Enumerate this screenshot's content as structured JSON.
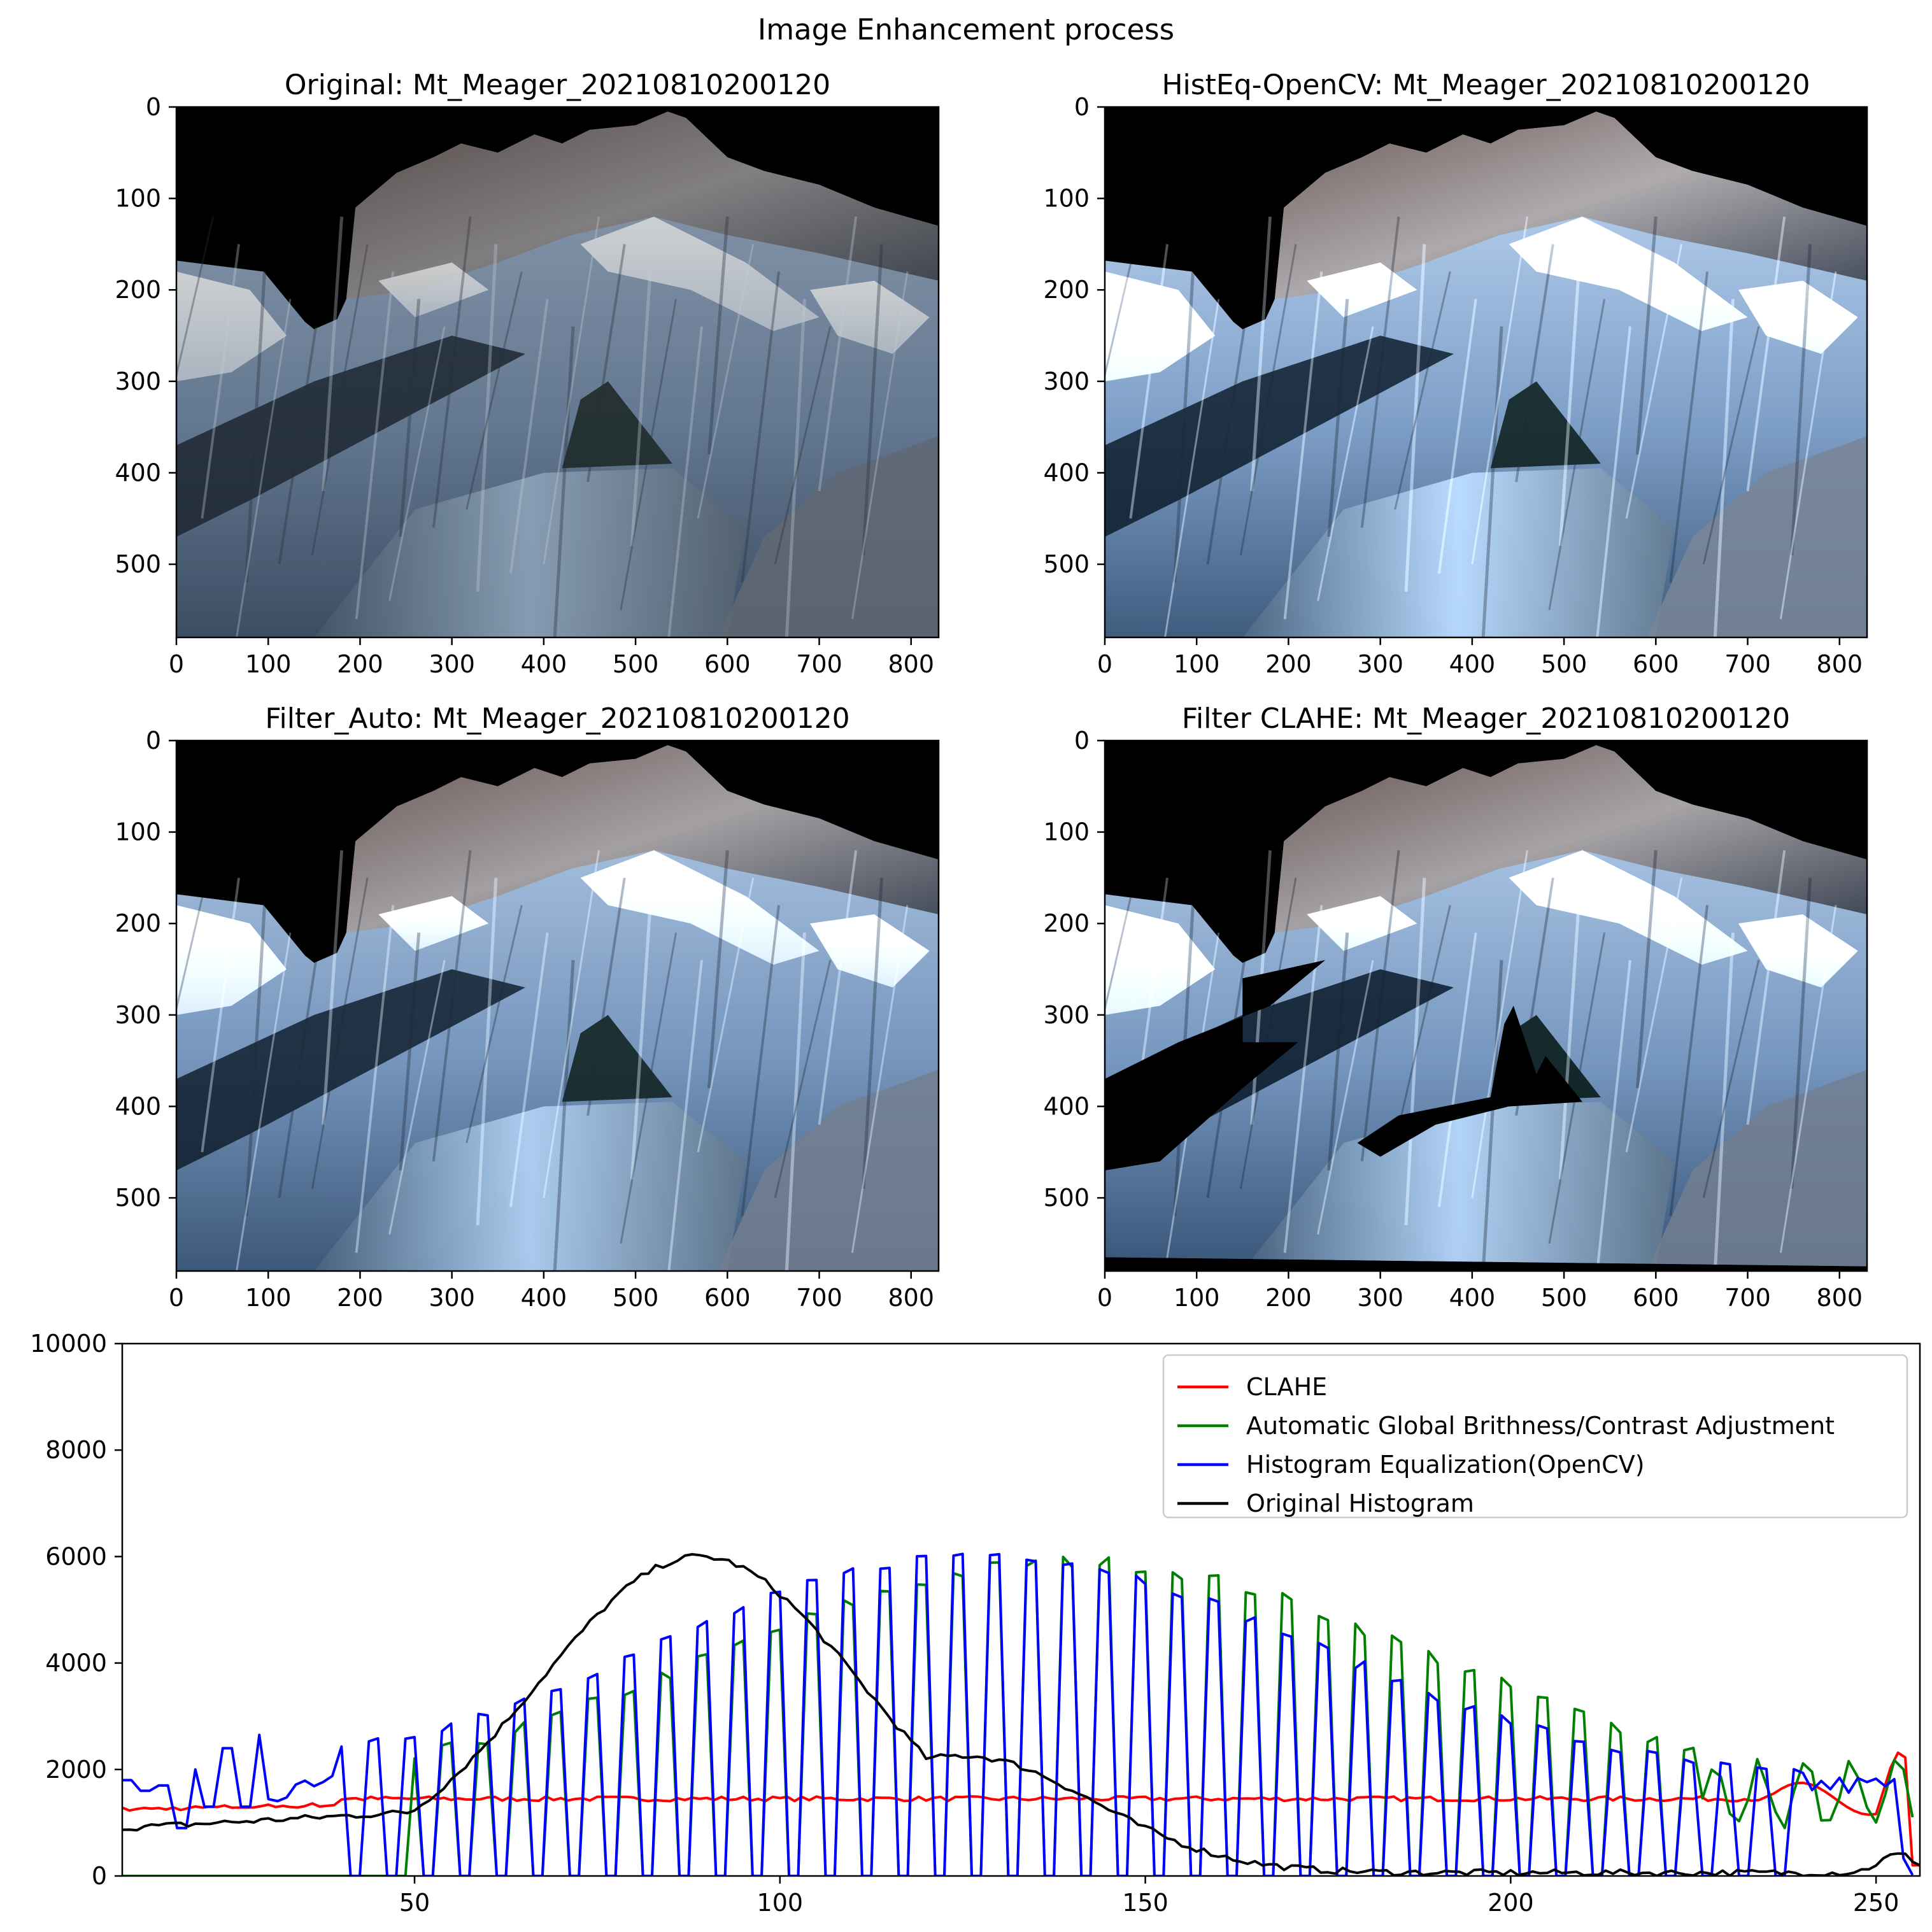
{
  "figure": {
    "suptitle": "Image Enhancement process"
  },
  "panels": [
    {
      "title": "Original: Mt_Meager_20210810200120",
      "variant": "original",
      "clahe_voids": false
    },
    {
      "title": "HistEq-OpenCV: Mt_Meager_20210810200120",
      "variant": "histeq",
      "clahe_voids": false
    },
    {
      "title": "Filter_Auto: Mt_Meager_20210810200120",
      "variant": "auto",
      "clahe_voids": false
    },
    {
      "title": "Filter CLAHE: Mt_Meager_20210810200120",
      "variant": "clahe",
      "clahe_voids": true
    }
  ],
  "image_axes": {
    "x_ticks": [
      "0",
      "100",
      "200",
      "300",
      "400",
      "500",
      "600",
      "700",
      "800"
    ],
    "y_ticks": [
      "0",
      "100",
      "200",
      "300",
      "400",
      "500"
    ],
    "x_max": 830,
    "y_max": 580
  },
  "chart_data": {
    "type": "line",
    "title": "",
    "xlabel": "",
    "ylabel": "",
    "xlim": [
      10,
      256
    ],
    "ylim": [
      0,
      10000
    ],
    "x_ticks": [
      "50",
      "100",
      "150",
      "200",
      "250"
    ],
    "y_ticks": [
      "0",
      "2000",
      "4000",
      "6000",
      "8000",
      "10000"
    ],
    "legend_position": "top-right",
    "series": [
      {
        "name": "CLAHE",
        "color": "#ff0000",
        "key": "clahe"
      },
      {
        "name": "Automatic Global Brithness/Contrast Adjustment",
        "color": "#008000",
        "key": "auto"
      },
      {
        "name": "Histogram Equalization(OpenCV)",
        "color": "#0000ff",
        "key": "histeq"
      },
      {
        "name": "Original Histogram",
        "color": "#000000",
        "key": "original"
      }
    ],
    "series_description": {
      "original": {
        "peak_x": 89,
        "peak_y": 6000,
        "start_y": 900,
        "tail_y": 60,
        "end_bump_y": 400
      },
      "clahe": {
        "level_y": 1450,
        "start_y": 1250,
        "end_peak_x": 253,
        "end_peak_y": 2400
      },
      "auto": {
        "range_x": [
          50,
          255
        ],
        "comb_period": 2.5,
        "envelope_peak_y": 5900
      },
      "histeq": {
        "range_x": [
          10,
          255
        ],
        "comb_period": 2.5,
        "envelope_peak_y": 6050,
        "early_values_y": [
          1800,
          1600,
          1700,
          900,
          2000,
          1300,
          2400,
          1300,
          2650
        ]
      }
    }
  }
}
